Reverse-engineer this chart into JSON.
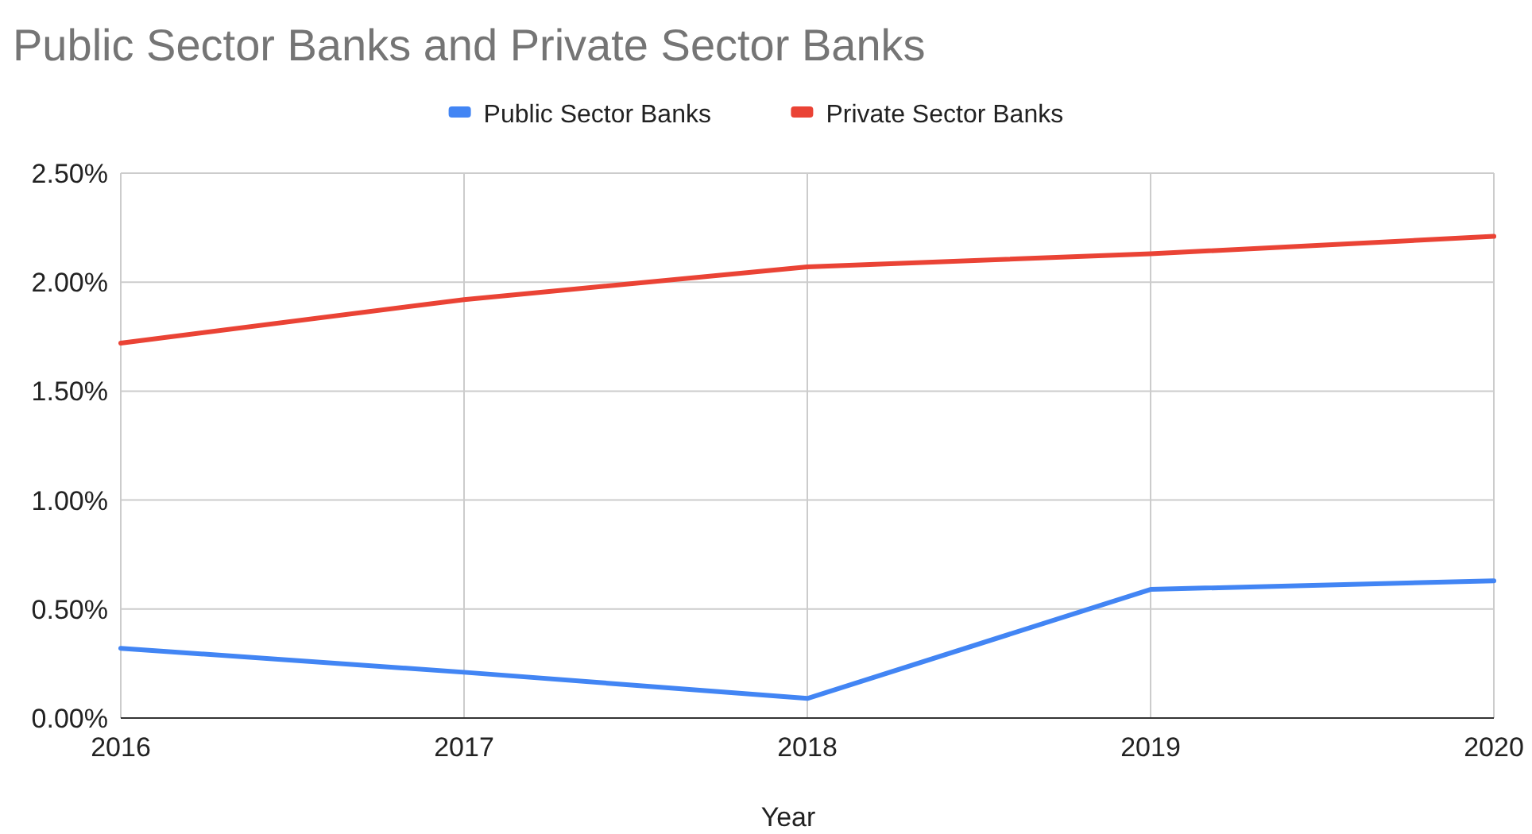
{
  "chart_data": {
    "type": "line",
    "title": "Public Sector Banks and Private Sector Banks",
    "xlabel": "Year",
    "x": [
      2016,
      2017,
      2018,
      2019,
      2020
    ],
    "series": [
      {
        "name": "Public Sector Banks",
        "color": "#4285f4",
        "values": [
          0.32,
          0.21,
          0.09,
          0.59,
          0.63
        ]
      },
      {
        "name": "Private Sector Banks",
        "color": "#ea4335",
        "values": [
          1.72,
          1.92,
          2.07,
          2.13,
          2.21
        ]
      }
    ],
    "xlim": [
      2016,
      2020
    ],
    "xticks": [
      2016,
      2017,
      2018,
      2019,
      2020
    ],
    "ylim": [
      0,
      2.5
    ],
    "yticks": [
      {
        "value": 0,
        "label": "0.00%"
      },
      {
        "value": 0.5,
        "label": "0.50%"
      },
      {
        "value": 1,
        "label": "1.00%"
      },
      {
        "value": 1.5,
        "label": "1.50%"
      },
      {
        "value": 2,
        "label": "2.00%"
      },
      {
        "value": 2.5,
        "label": "2.50%"
      }
    ],
    "grid": true,
    "legend": "top"
  }
}
